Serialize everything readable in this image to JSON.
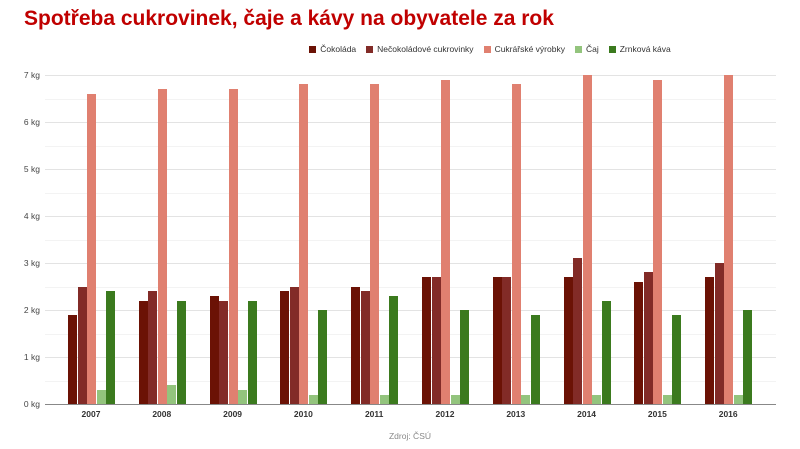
{
  "title": "Spotřeba cukrovinek, čaje a kávy na obyvatele za rok",
  "source": "Zdroj: ČSÚ",
  "legend": [
    {
      "label": "Čokoláda",
      "color": "#6b1205"
    },
    {
      "label": "Nečokoládové cukrovinky",
      "color": "#822b27"
    },
    {
      "label": "Cukrářské výrobky",
      "color": "#e08070"
    },
    {
      "label": "Čaj",
      "color": "#93c47d"
    },
    {
      "label": "Zrnková káva",
      "color": "#3b7a1e"
    }
  ],
  "y_ticks": [
    "0 kg",
    "1 kg",
    "2 kg",
    "3 kg",
    "4 kg",
    "5 kg",
    "6 kg",
    "7 kg"
  ],
  "chart_data": {
    "type": "bar",
    "title": "Spotřeba cukrovinek, čaje a kávy na obyvatele za rok",
    "xlabel": "",
    "ylabel": "kg",
    "ylim": [
      0,
      7
    ],
    "grid": true,
    "legend_position": "top",
    "categories": [
      "2007",
      "2008",
      "2009",
      "2010",
      "2011",
      "2012",
      "2013",
      "2014",
      "2015",
      "2016"
    ],
    "series": [
      {
        "name": "Čokoláda",
        "color": "#6b1205",
        "values": [
          1.9,
          2.2,
          2.3,
          2.4,
          2.5,
          2.7,
          2.7,
          2.7,
          2.6,
          2.7
        ]
      },
      {
        "name": "Nečokoládové cukrovinky",
        "color": "#822b27",
        "values": [
          2.5,
          2.4,
          2.2,
          2.5,
          2.4,
          2.7,
          2.7,
          3.1,
          2.8,
          3.0
        ]
      },
      {
        "name": "Cukrářské výrobky",
        "color": "#e08070",
        "values": [
          6.6,
          6.7,
          6.7,
          6.8,
          6.8,
          6.9,
          6.8,
          7.0,
          6.9,
          7.0
        ]
      },
      {
        "name": "Čaj",
        "color": "#93c47d",
        "values": [
          0.3,
          0.4,
          0.3,
          0.2,
          0.2,
          0.2,
          0.2,
          0.2,
          0.2,
          0.2
        ]
      },
      {
        "name": "Zrnková káva",
        "color": "#3b7a1e",
        "values": [
          2.4,
          2.2,
          2.2,
          2.0,
          2.3,
          2.0,
          1.9,
          2.2,
          1.9,
          2.0
        ]
      }
    ],
    "source": "Zdroj: ČSÚ"
  }
}
